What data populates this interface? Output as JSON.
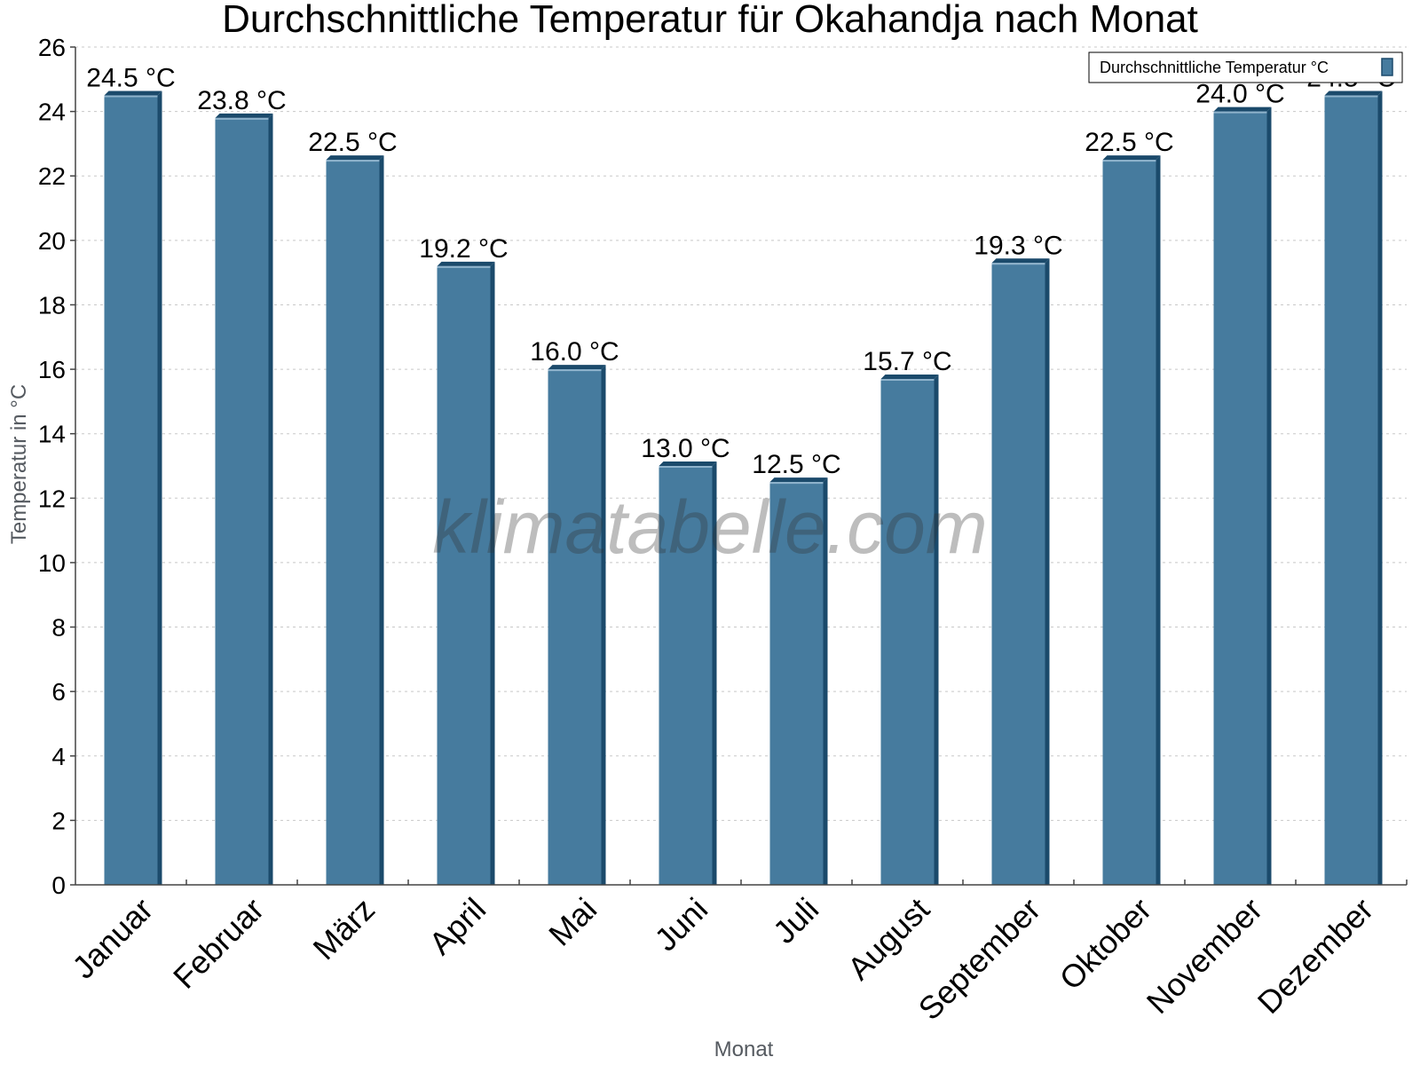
{
  "chart_data": {
    "type": "bar",
    "title": "Durchschnittliche Temperatur für Okahandja nach Monat",
    "xlabel": "Monat",
    "ylabel": "Temperatur in °C",
    "ylim": [
      0,
      26
    ],
    "yticks": [
      0,
      2,
      4,
      6,
      8,
      10,
      12,
      14,
      16,
      18,
      20,
      22,
      24,
      26
    ],
    "grid": true,
    "legend_position": "top-right",
    "categories": [
      "Januar",
      "Februar",
      "März",
      "April",
      "Mai",
      "Juni",
      "Juli",
      "August",
      "September",
      "Oktober",
      "November",
      "Dezember"
    ],
    "series": [
      {
        "name": "Durchschnittliche Temperatur °C",
        "values": [
          24.5,
          23.8,
          22.5,
          19.2,
          16.0,
          13.0,
          12.5,
          15.7,
          19.3,
          22.5,
          24.0,
          24.5
        ],
        "labels": [
          "24.5 °C",
          "23.8 °C",
          "22.5 °C",
          "19.2 °C",
          "16.0 °C",
          "13.0 °C",
          "12.5 °C",
          "15.7 °C",
          "19.3 °C",
          "22.5 °C",
          "24.0 °C",
          "24.5 °C"
        ],
        "color": "#467b9e",
        "side_color": "#1b4a6b"
      }
    ]
  },
  "watermark": "klimatabelle.com"
}
